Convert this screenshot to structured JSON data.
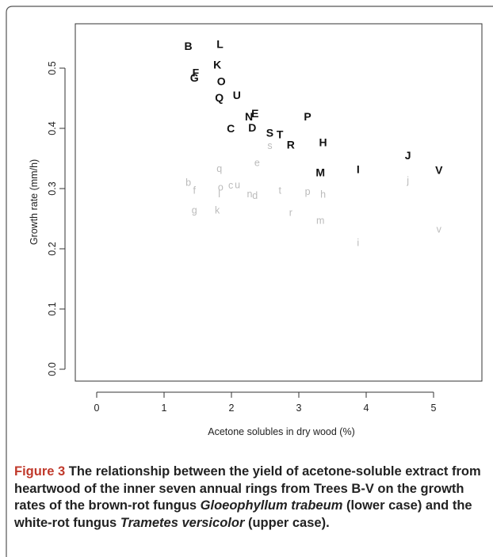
{
  "chart_data": {
    "type": "scatter",
    "xlabel": "Acetone solubles in dry wood (%)",
    "ylabel": "Growth rate (mm/h)",
    "xlim": [
      0,
      5.5
    ],
    "ylim": [
      0,
      0.55
    ],
    "xticks": [
      "0",
      "1",
      "2",
      "3",
      "4",
      "5"
    ],
    "yticks": [
      "0.0",
      "0.1",
      "0.2",
      "0.3",
      "0.4",
      "0.5"
    ],
    "grid": false,
    "series": [
      {
        "color": "#111111",
        "points": [
          {
            "label": "B",
            "x": 1.36,
            "y": 0.537
          },
          {
            "label": "L",
            "x": 1.83,
            "y": 0.54
          },
          {
            "label": "K",
            "x": 1.79,
            "y": 0.506
          },
          {
            "label": "F",
            "x": 1.47,
            "y": 0.493
          },
          {
            "label": "G",
            "x": 1.45,
            "y": 0.484
          },
          {
            "label": "O",
            "x": 1.85,
            "y": 0.478
          },
          {
            "label": "U",
            "x": 2.08,
            "y": 0.455
          },
          {
            "label": "Q",
            "x": 1.82,
            "y": 0.451
          },
          {
            "label": "N",
            "x": 2.26,
            "y": 0.42
          },
          {
            "label": "E",
            "x": 2.35,
            "y": 0.425
          },
          {
            "label": "P",
            "x": 3.13,
            "y": 0.42
          },
          {
            "label": "C",
            "x": 1.99,
            "y": 0.4
          },
          {
            "label": "D",
            "x": 2.31,
            "y": 0.401
          },
          {
            "label": "S",
            "x": 2.57,
            "y": 0.393
          },
          {
            "label": "T",
            "x": 2.72,
            "y": 0.39
          },
          {
            "label": "H",
            "x": 3.36,
            "y": 0.377
          },
          {
            "label": "R",
            "x": 2.88,
            "y": 0.373
          },
          {
            "label": "J",
            "x": 4.62,
            "y": 0.355
          },
          {
            "label": "I",
            "x": 3.88,
            "y": 0.332
          },
          {
            "label": "V",
            "x": 5.08,
            "y": 0.331
          },
          {
            "label": "M",
            "x": 3.32,
            "y": 0.327
          }
        ]
      },
      {
        "color": "#bbbbbb",
        "points": [
          {
            "label": "s",
            "x": 2.57,
            "y": 0.371
          },
          {
            "label": "e",
            "x": 2.38,
            "y": 0.343
          },
          {
            "label": "q",
            "x": 1.82,
            "y": 0.333
          },
          {
            "label": "j",
            "x": 4.62,
            "y": 0.313
          },
          {
            "label": "b",
            "x": 1.36,
            "y": 0.31
          },
          {
            "label": "c",
            "x": 1.99,
            "y": 0.305
          },
          {
            "label": "u",
            "x": 2.09,
            "y": 0.306
          },
          {
            "label": "o",
            "x": 1.84,
            "y": 0.302
          },
          {
            "label": "f",
            "x": 1.45,
            "y": 0.297
          },
          {
            "label": "t",
            "x": 2.72,
            "y": 0.297
          },
          {
            "label": "p",
            "x": 3.13,
            "y": 0.295
          },
          {
            "label": "l",
            "x": 1.82,
            "y": 0.291
          },
          {
            "label": "n",
            "x": 2.27,
            "y": 0.291
          },
          {
            "label": "d",
            "x": 2.35,
            "y": 0.288
          },
          {
            "label": "h",
            "x": 3.36,
            "y": 0.29
          },
          {
            "label": "g",
            "x": 1.45,
            "y": 0.264
          },
          {
            "label": "k",
            "x": 1.79,
            "y": 0.264
          },
          {
            "label": "r",
            "x": 2.88,
            "y": 0.26
          },
          {
            "label": "m",
            "x": 3.32,
            "y": 0.247
          },
          {
            "label": "v",
            "x": 5.08,
            "y": 0.232
          },
          {
            "label": "i",
            "x": 3.88,
            "y": 0.21
          }
        ]
      }
    ]
  },
  "caption": {
    "figure_label": "Figure 3",
    "text_part1": " The relationship between the yield of acetone-soluble extract from heartwood of the inner seven annual rings from Trees B-V on the growth rates of the brown-rot fungus ",
    "species1": "Gloeophyllum trabeum",
    "text_part2": " (lower case) and the white-rot fungus ",
    "species2": "Trametes versicolor",
    "text_part3": " (upper case)."
  }
}
